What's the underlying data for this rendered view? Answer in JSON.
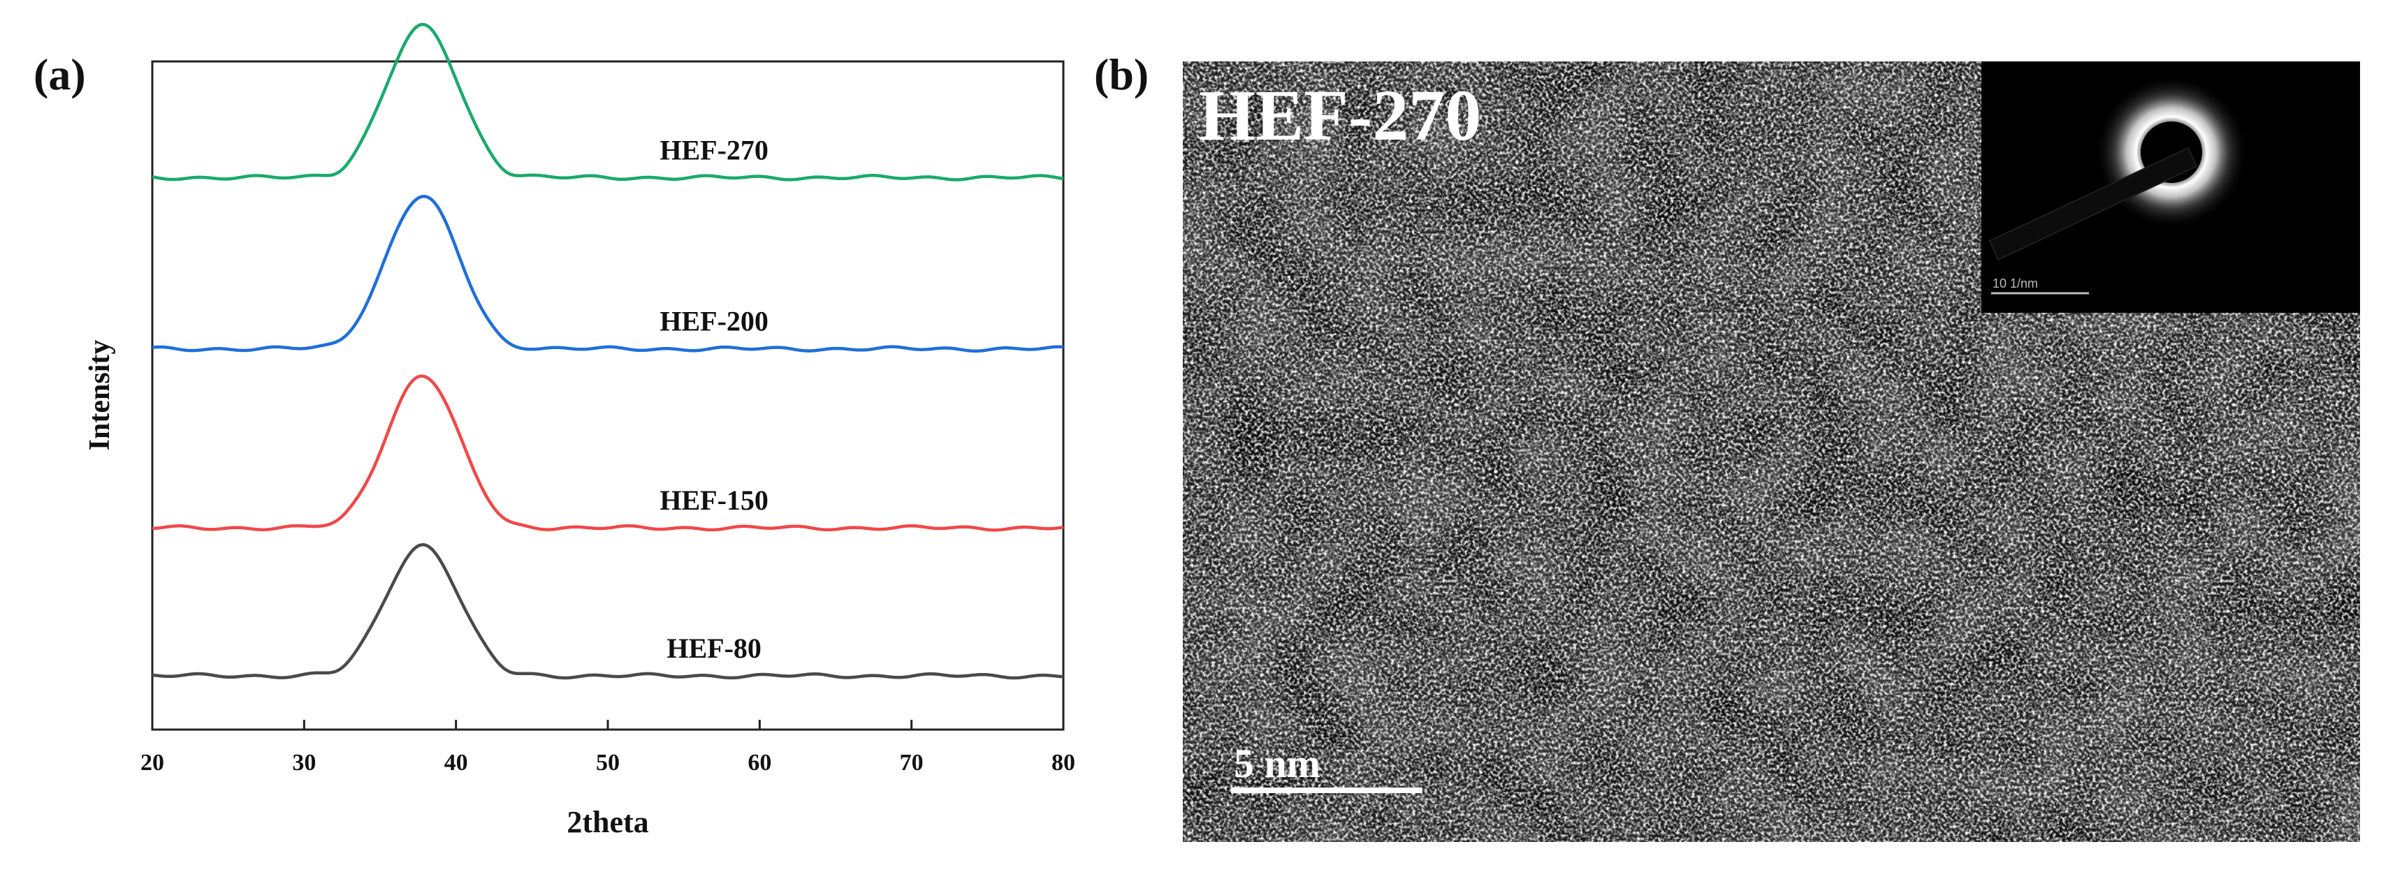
{
  "panel_a": {
    "label": "(a)",
    "chart_data": {
      "type": "line",
      "title": "",
      "xlabel": "2theta",
      "ylabel": "Intensity",
      "xlim": [
        20,
        80
      ],
      "xticks": [
        "20",
        "30",
        "40",
        "50",
        "60",
        "70",
        "80"
      ],
      "yticks_shown": false,
      "grid": false,
      "peak_center_2theta": 37.8,
      "series": [
        {
          "name": "HEF-80",
          "color": "#4a4a4a",
          "offset": 0.0,
          "peak_height": 0.84,
          "peak_width": 2.4
        },
        {
          "name": "HEF-150",
          "color": "#f04848",
          "offset": 0.95,
          "peak_height": 0.98,
          "peak_width": 2.4
        },
        {
          "name": "HEF-200",
          "color": "#1f6fd8",
          "offset": 2.1,
          "peak_height": 0.98,
          "peak_width": 2.4
        },
        {
          "name": "HEF-270",
          "color": "#1aaa6c",
          "offset": 3.2,
          "peak_height": 0.97,
          "peak_width": 2.4
        }
      ]
    }
  },
  "panel_b": {
    "label": "(b)",
    "sample_label": "HEF-270",
    "scale_bar_label": "5 nm",
    "inset_scale_label": "10 1/nm"
  }
}
